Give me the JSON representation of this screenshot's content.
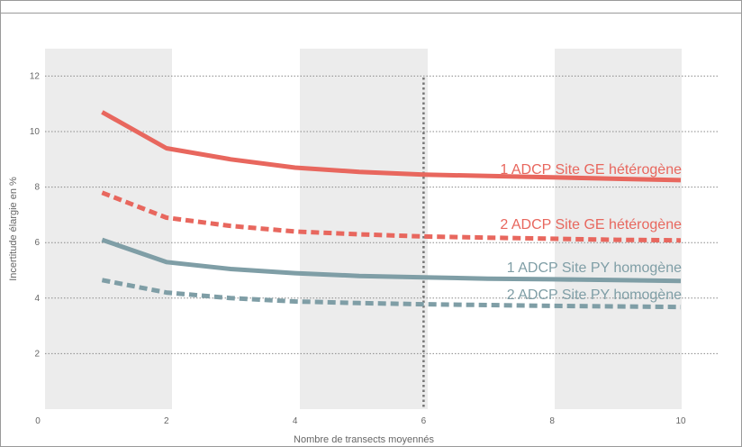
{
  "chart_data": {
    "type": "line",
    "xlabel": "Nombre de transects moyennés",
    "ylabel": "Incertitude élargie en %",
    "xlim": [
      0,
      11
    ],
    "ylim": [
      0,
      13
    ],
    "xticks": [
      "0",
      "2",
      "4",
      "6",
      "8",
      "10"
    ],
    "yticks": [
      "2",
      "4",
      "6",
      "8",
      "10",
      "12"
    ],
    "x": [
      1,
      2,
      3,
      4,
      5,
      6,
      7,
      8,
      9,
      10
    ],
    "reference_line_x": 6,
    "grid": true,
    "series": [
      {
        "name": "1 ADCP Site GE hétérogène",
        "color": "#e8675e",
        "style": "solid",
        "values": [
          10.7,
          9.4,
          9.0,
          8.7,
          8.55,
          8.45,
          8.4,
          8.35,
          8.3,
          8.25
        ]
      },
      {
        "name": "2 ADCP Site GE hétérogène",
        "color": "#e8675e",
        "style": "dashed",
        "values": [
          7.8,
          6.9,
          6.6,
          6.4,
          6.3,
          6.22,
          6.18,
          6.14,
          6.1,
          6.08
        ]
      },
      {
        "name": "1 ADCP Site PY homogène",
        "color": "#7f9ea6",
        "style": "solid",
        "values": [
          6.1,
          5.3,
          5.05,
          4.9,
          4.8,
          4.75,
          4.7,
          4.68,
          4.65,
          4.62
        ]
      },
      {
        "name": "2 ADCP Site PY homogène",
        "color": "#7f9ea6",
        "style": "dashed",
        "values": [
          4.65,
          4.2,
          4.0,
          3.88,
          3.82,
          3.78,
          3.75,
          3.72,
          3.7,
          3.68
        ]
      }
    ]
  }
}
